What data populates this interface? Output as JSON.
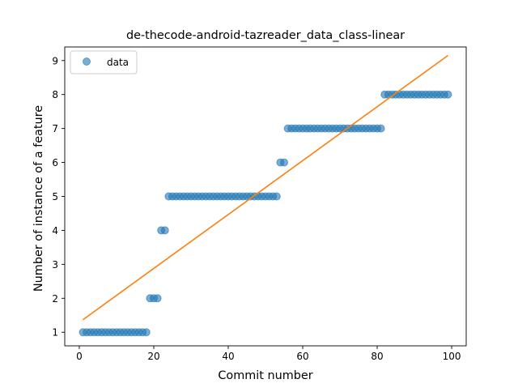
{
  "chart_data": {
    "type": "scatter",
    "title": "de-thecode-android-tazreader_data_class-linear",
    "xlabel": "Commit number",
    "ylabel": "Number of instance of a feature",
    "xlim": [
      -3.9,
      103.9
    ],
    "ylim": [
      0.6,
      9.4
    ],
    "xticks": [
      0,
      20,
      40,
      60,
      80,
      100
    ],
    "yticks": [
      1,
      2,
      3,
      4,
      5,
      6,
      7,
      8,
      9
    ],
    "grid": false,
    "legend": {
      "placement": "top-left",
      "entries": [
        "data"
      ]
    },
    "series": [
      {
        "name": "data",
        "kind": "scatter",
        "color": "#1f77b4",
        "alpha": 0.6,
        "x": [
          1,
          2,
          3,
          4,
          5,
          6,
          7,
          8,
          9,
          10,
          11,
          12,
          13,
          14,
          15,
          16,
          17,
          18,
          19,
          20,
          21,
          22,
          23,
          24,
          25,
          26,
          27,
          28,
          29,
          30,
          31,
          32,
          33,
          34,
          35,
          36,
          37,
          38,
          39,
          40,
          41,
          42,
          43,
          44,
          45,
          46,
          47,
          48,
          49,
          50,
          51,
          52,
          53,
          54,
          55,
          56,
          57,
          58,
          59,
          60,
          61,
          62,
          63,
          64,
          65,
          66,
          67,
          68,
          69,
          70,
          71,
          72,
          73,
          74,
          75,
          76,
          77,
          78,
          79,
          80,
          81,
          82,
          83,
          84,
          85,
          86,
          87,
          88,
          89,
          90,
          91,
          92,
          93,
          94,
          95,
          96,
          97,
          98,
          99
        ],
        "y": [
          1,
          1,
          1,
          1,
          1,
          1,
          1,
          1,
          1,
          1,
          1,
          1,
          1,
          1,
          1,
          1,
          1,
          1,
          2,
          2,
          2,
          4,
          4,
          5,
          5,
          5,
          5,
          5,
          5,
          5,
          5,
          5,
          5,
          5,
          5,
          5,
          5,
          5,
          5,
          5,
          5,
          5,
          5,
          5,
          5,
          5,
          5,
          5,
          5,
          5,
          5,
          5,
          5,
          6,
          6,
          7,
          7,
          7,
          7,
          7,
          7,
          7,
          7,
          7,
          7,
          7,
          7,
          7,
          7,
          7,
          7,
          7,
          7,
          7,
          7,
          7,
          7,
          7,
          7,
          7,
          7,
          8,
          8,
          8,
          8,
          8,
          8,
          8,
          8,
          8,
          8,
          8,
          8,
          8,
          8,
          8,
          8,
          8,
          8
        ]
      },
      {
        "kind": "line",
        "color": "#ff7f0e",
        "x": [
          1,
          99
        ],
        "y": [
          1.37,
          9.15
        ]
      }
    ]
  }
}
